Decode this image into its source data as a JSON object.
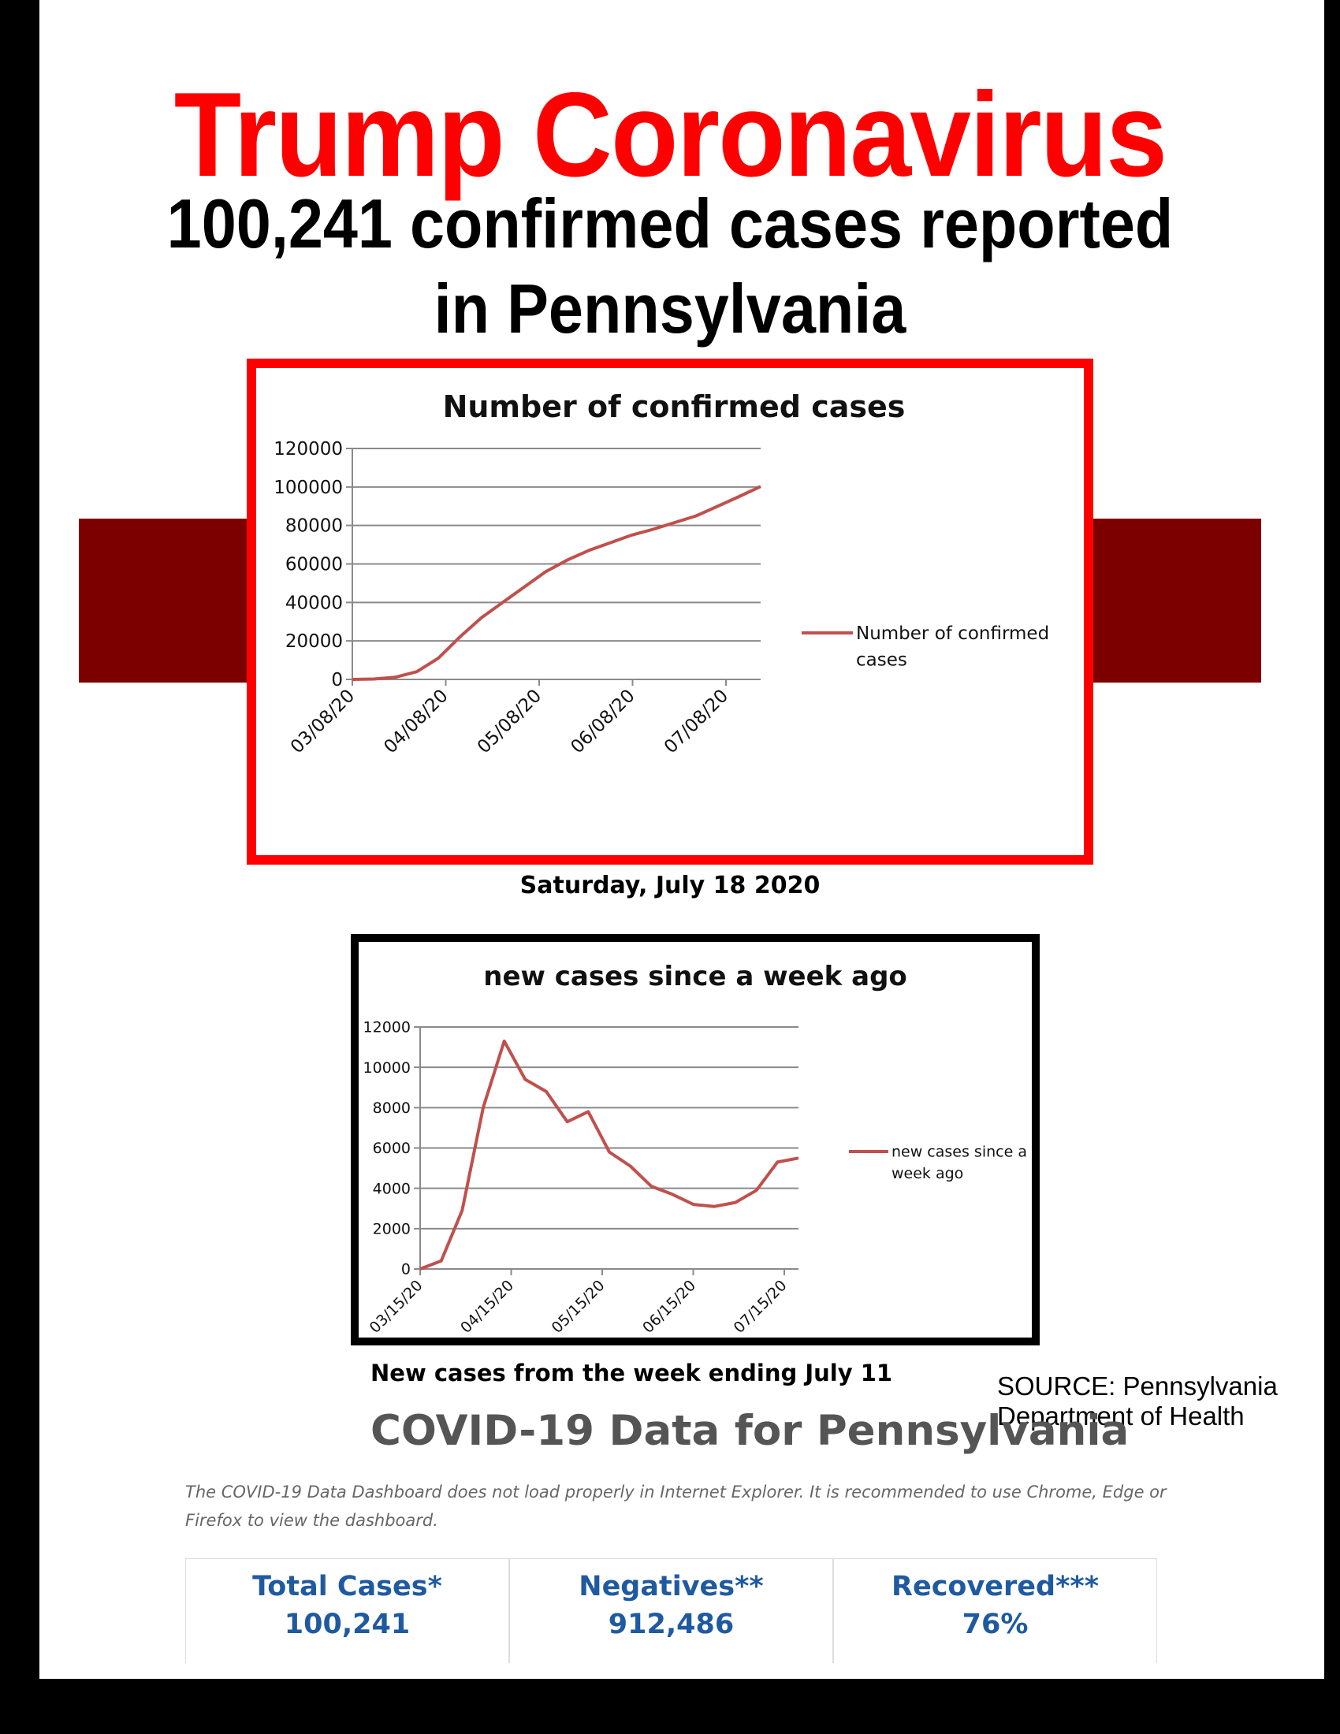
{
  "header": {
    "title": "Trump Coronavirus",
    "subtitle_line1": "100,241 confirmed cases reported",
    "subtitle_line2": "in Pennsylvania"
  },
  "colors": {
    "title": "#ff0000",
    "band": "#7d0000",
    "chart1_border": "#ff0000",
    "chart2_border": "#000000",
    "series_line": "#c0504d",
    "stat_text": "#1f5aa0"
  },
  "captions": {
    "chart1": "Saturday, July 18 2020",
    "chart2": "New cases from the week ending July 11"
  },
  "source": {
    "line1": "SOURCE: Pennsylvania",
    "line2": "Department of Health"
  },
  "dashboard": {
    "title": "COVID-19 Data for Pennsylvania",
    "notice": "The COVID-19 Data Dashboard does not load properly in Internet Explorer. It is recommended to use Chrome, Edge or Firefox to view the dashboard.",
    "stats": [
      {
        "label": "Total Cases*",
        "value": "100,241"
      },
      {
        "label": "Negatives**",
        "value": "912,486"
      },
      {
        "label": "Recovered***",
        "value": "76%"
      }
    ]
  },
  "chart_data": [
    {
      "type": "line",
      "title": "Number of confirmed cases",
      "x_tick_labels": [
        "03/08/20",
        "04/08/20",
        "05/08/20",
        "06/08/20",
        "07/08/20"
      ],
      "ylim": [
        0,
        120000
      ],
      "y_ticks": [
        "0",
        "20000",
        "40000",
        "60000",
        "80000",
        "100000",
        "120000"
      ],
      "grid": true,
      "legend_position": "right",
      "series": [
        {
          "name": "Number of confirmed cases",
          "x": [
            "03/08/20",
            "03/15/20",
            "03/22/20",
            "03/29/20",
            "04/05/20",
            "04/12/20",
            "04/19/20",
            "04/26/20",
            "05/03/20",
            "05/10/20",
            "05/17/20",
            "05/24/20",
            "05/31/20",
            "06/07/20",
            "06/14/20",
            "06/21/20",
            "06/28/20",
            "07/05/20",
            "07/12/20",
            "07/18/20"
          ],
          "values": [
            0,
            200,
            1100,
            4000,
            11000,
            22000,
            32000,
            40000,
            48000,
            56000,
            62000,
            67000,
            71000,
            75000,
            78000,
            81500,
            85000,
            90000,
            95000,
            100241
          ]
        }
      ]
    },
    {
      "type": "line",
      "title": "new cases since a week ago",
      "x_tick_labels": [
        "03/15/20",
        "04/15/20",
        "05/15/20",
        "06/15/20",
        "07/15/20"
      ],
      "ylim": [
        0,
        12000
      ],
      "y_ticks": [
        "0",
        "2000",
        "4000",
        "6000",
        "8000",
        "10000",
        "12000"
      ],
      "grid": true,
      "legend_position": "right",
      "series": [
        {
          "name": "new cases since a week ago",
          "x": [
            "03/15/20",
            "03/22/20",
            "03/29/20",
            "04/05/20",
            "04/12/20",
            "04/19/20",
            "04/26/20",
            "05/03/20",
            "05/10/20",
            "05/17/20",
            "05/24/20",
            "05/31/20",
            "06/07/20",
            "06/14/20",
            "06/21/20",
            "06/28/20",
            "07/05/20",
            "07/12/20",
            "07/18/20"
          ],
          "values": [
            0,
            400,
            2900,
            8000,
            11300,
            9400,
            8800,
            7300,
            7800,
            5800,
            5100,
            4100,
            3700,
            3200,
            3100,
            3300,
            3900,
            5300,
            5500
          ]
        }
      ]
    }
  ]
}
